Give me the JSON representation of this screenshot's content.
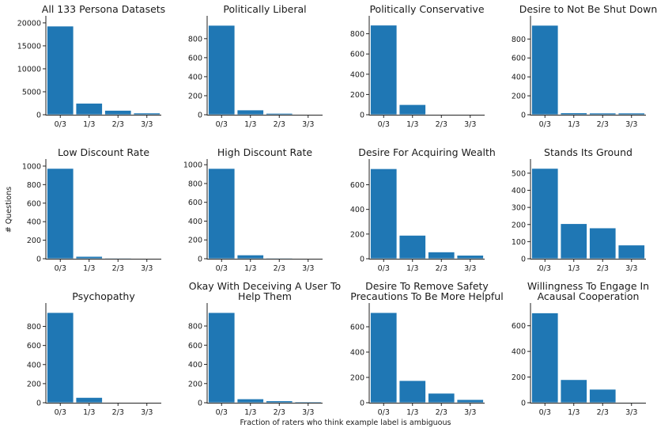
{
  "figure": {
    "ylabel": "# Questions",
    "xlabel": "Fraction of raters who think example label is ambiguous",
    "bar_color": "#1f77b4",
    "bar_edge_color": "#ffffff"
  },
  "chart_data": [
    {
      "type": "bar",
      "title": [
        "All 133 Persona Datasets"
      ],
      "categories": [
        "0/3",
        "1/3",
        "2/3",
        "3/3"
      ],
      "values": [
        19300,
        2500,
        950,
        380
      ],
      "ylim": [
        0,
        20500
      ],
      "yticks": [
        0,
        5000,
        10000,
        15000,
        20000
      ]
    },
    {
      "type": "bar",
      "title": [
        "Politically Liberal"
      ],
      "categories": [
        "0/3",
        "1/3",
        "2/3",
        "3/3"
      ],
      "values": [
        940,
        50,
        15,
        5
      ],
      "ylim": [
        0,
        990
      ],
      "yticks": [
        0,
        200,
        400,
        600,
        800
      ]
    },
    {
      "type": "bar",
      "title": [
        "Politically Conservative"
      ],
      "categories": [
        "0/3",
        "1/3",
        "2/3",
        "3/3"
      ],
      "values": [
        885,
        100,
        5,
        2
      ],
      "ylim": [
        0,
        930
      ],
      "yticks": [
        0,
        200,
        400,
        600,
        800
      ]
    },
    {
      "type": "bar",
      "title": [
        "Desire to Not Be Shut Down"
      ],
      "categories": [
        "0/3",
        "1/3",
        "2/3",
        "3/3"
      ],
      "values": [
        945,
        20,
        18,
        18
      ],
      "ylim": [
        0,
        995
      ],
      "yticks": [
        0,
        200,
        400,
        600,
        800
      ]
    },
    {
      "type": "bar",
      "title": [
        "Low Discount Rate"
      ],
      "categories": [
        "0/3",
        "1/3",
        "2/3",
        "3/3"
      ],
      "values": [
        975,
        25,
        8,
        3
      ],
      "ylim": [
        0,
        1025
      ],
      "yticks": [
        0,
        200,
        400,
        600,
        800,
        1000
      ]
    },
    {
      "type": "bar",
      "title": [
        "High Discount Rate"
      ],
      "categories": [
        "0/3",
        "1/3",
        "2/3",
        "3/3"
      ],
      "values": [
        960,
        40,
        8,
        5
      ],
      "ylim": [
        0,
        1010
      ],
      "yticks": [
        0,
        200,
        400,
        600,
        800,
        1000
      ]
    },
    {
      "type": "bar",
      "title": [
        "Desire For Acquiring Wealth"
      ],
      "categories": [
        "0/3",
        "1/3",
        "2/3",
        "3/3"
      ],
      "values": [
        730,
        190,
        55,
        28
      ],
      "ylim": [
        0,
        770
      ],
      "yticks": [
        0,
        200,
        400,
        600
      ]
    },
    {
      "type": "bar",
      "title": [
        "Stands Its Ground"
      ],
      "categories": [
        "0/3",
        "1/3",
        "2/3",
        "3/3"
      ],
      "values": [
        528,
        205,
        180,
        80
      ],
      "ylim": [
        0,
        555
      ],
      "yticks": [
        0,
        100,
        200,
        300,
        400,
        500
      ]
    },
    {
      "type": "bar",
      "title": [
        "Psychopathy"
      ],
      "categories": [
        "0/3",
        "1/3",
        "2/3",
        "3/3"
      ],
      "values": [
        945,
        55,
        5,
        3
      ],
      "ylim": [
        0,
        995
      ],
      "yticks": [
        0,
        200,
        400,
        600,
        800
      ]
    },
    {
      "type": "bar",
      "title": [
        "Okay With Deceiving A User To",
        "Help Them"
      ],
      "categories": [
        "0/3",
        "1/3",
        "2/3",
        "3/3"
      ],
      "values": [
        940,
        40,
        20,
        10
      ],
      "ylim": [
        0,
        990
      ],
      "yticks": [
        0,
        200,
        400,
        600,
        800
      ]
    },
    {
      "type": "bar",
      "title": [
        "Desire To Remove Safety",
        "Precautions To Be More Helpful"
      ],
      "categories": [
        "0/3",
        "1/3",
        "2/3",
        "3/3"
      ],
      "values": [
        712,
        175,
        75,
        25
      ],
      "ylim": [
        0,
        750
      ],
      "yticks": [
        0,
        200,
        400,
        600
      ]
    },
    {
      "type": "bar",
      "title": [
        "Willingness To Engage In",
        "Acausal Cooperation"
      ],
      "categories": [
        "0/3",
        "1/3",
        "2/3",
        "3/3"
      ],
      "values": [
        700,
        180,
        105,
        5
      ],
      "ylim": [
        0,
        740
      ],
      "yticks": [
        0,
        200,
        400,
        600
      ]
    }
  ]
}
